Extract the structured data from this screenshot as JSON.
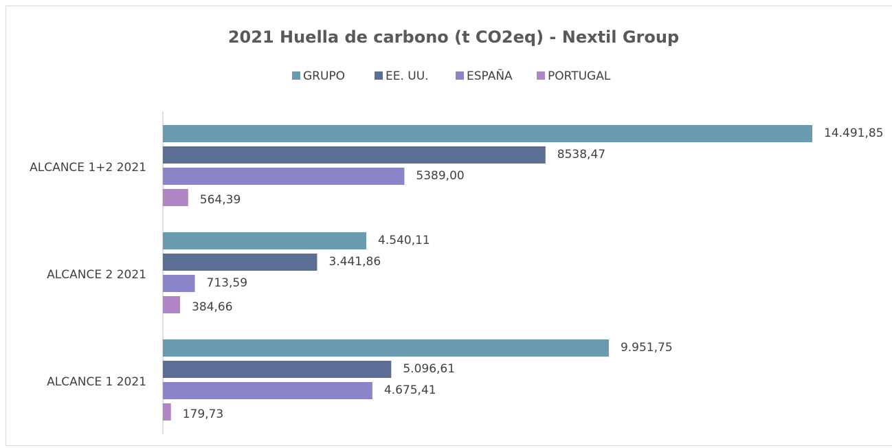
{
  "chart_data": {
    "type": "bar",
    "orientation": "horizontal",
    "title": "2021 Huella de carbono (t CO2eq) - Nextil Group",
    "categories": [
      "ALCANCE 1+2 2021",
      "ALCANCE 2 2021",
      "ALCANCE 1 2021"
    ],
    "series": [
      {
        "name": "GRUPO",
        "color": "#6a9ab0",
        "values": [
          14491.85,
          4540.11,
          9951.75
        ],
        "value_labels": [
          "14.491,85",
          "4.540,11",
          "9.951,75"
        ]
      },
      {
        "name": "EE. UU.",
        "color": "#5b6f96",
        "values": [
          8538.47,
          3441.86,
          5096.61
        ],
        "value_labels": [
          "8538,47",
          "3.441,86",
          "5.096,61"
        ]
      },
      {
        "name": "ESPAÑA",
        "color": "#8a84c8",
        "values": [
          5389.0,
          713.59,
          4675.41
        ],
        "value_labels": [
          "5389,00",
          "713,59",
          "4.675,41"
        ]
      },
      {
        "name": "PORTUGAL",
        "color": "#b184c6",
        "values": [
          564.39,
          384.66,
          179.73
        ],
        "value_labels": [
          "564,39",
          "384,66",
          "179,73"
        ]
      }
    ],
    "legend": "top"
  }
}
